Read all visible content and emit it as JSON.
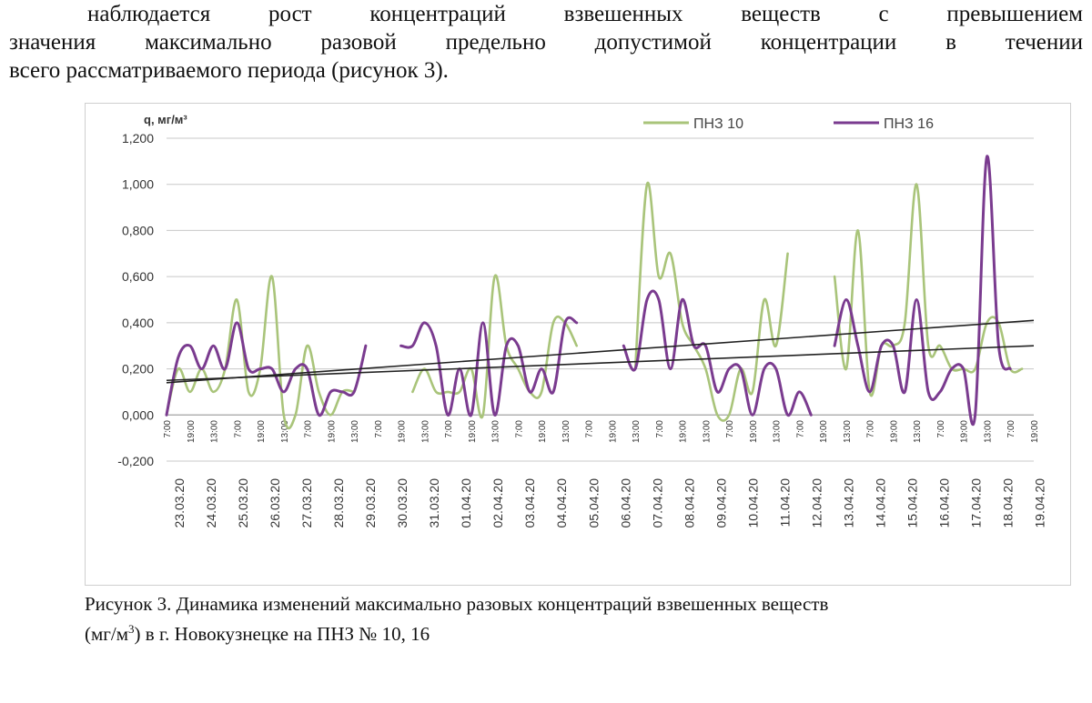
{
  "paragraph": {
    "line1": "наблюдается рост концентраций взвешенных веществ с превышением",
    "line2": "значения максимально разовой предельно допустимой концентрации в течении",
    "line3": "всего рассматриваемого периода (рисунок 3)."
  },
  "caption": {
    "line1": "Рисунок 3. Динамика изменений максимально разовых концентраций взвешенных веществ",
    "line2_pre": "(мг/м",
    "line2_sup": "3",
    "line2_post": ") в г. Новокузнецке на ПНЗ № 10, 16"
  },
  "chart_data": {
    "type": "line",
    "title": "",
    "ylabel": "q, мг/м³",
    "xlabel": "",
    "ylim": [
      -0.2,
      1.2
    ],
    "yticks": [
      "1,200",
      "1,000",
      "0,800",
      "0,600",
      "0,400",
      "0,200",
      "0,000",
      "-0,200"
    ],
    "ytick_values": [
      1.2,
      1.0,
      0.8,
      0.6,
      0.4,
      0.2,
      0.0,
      -0.2
    ],
    "grid": true,
    "legend_position": "top-right",
    "colors": {
      "pnz10": "#a9c47a",
      "pnz16": "#7a3b8f",
      "trend": "#222222",
      "grid": "#c8c8c8"
    },
    "dates": [
      "23.03.20",
      "24.03.20",
      "25.03.20",
      "26.03.20",
      "27.03.20",
      "28.03.20",
      "29.03.20",
      "30.03.20",
      "31.03.20",
      "01.04.20",
      "02.04.20",
      "03.04.20",
      "04.04.20",
      "05.04.20",
      "06.04.20",
      "07.04.20",
      "08.04.20",
      "09.04.20",
      "10.04.20",
      "11.04.20",
      "12.04.20",
      "13.04.20",
      "14.04.20",
      "15.04.20",
      "16.04.20",
      "17.04.20",
      "18.04.20",
      "19.04.20"
    ],
    "time_labels": [
      "7:00",
      "19:00",
      "13:00"
    ],
    "series": [
      {
        "name": "ПНЗ 10",
        "segments": [
          [
            [
              0,
              0.0
            ],
            [
              1,
              0.2
            ],
            [
              2,
              0.1
            ],
            [
              3,
              0.2
            ],
            [
              4,
              0.1
            ],
            [
              5,
              0.2
            ],
            [
              6,
              0.5
            ],
            [
              7,
              0.1
            ],
            [
              8,
              0.2
            ],
            [
              9,
              0.6
            ],
            [
              10,
              0.0
            ],
            [
              11,
              0.0
            ],
            [
              12,
              0.3
            ],
            [
              13,
              0.1
            ],
            [
              14,
              0.0
            ],
            [
              15,
              0.1
            ],
            [
              16,
              0.1
            ]
          ],
          [
            [
              21,
              0.1
            ],
            [
              22,
              0.2
            ],
            [
              23,
              0.1
            ],
            [
              24,
              0.1
            ],
            [
              25,
              0.1
            ],
            [
              26,
              0.2
            ],
            [
              27,
              0.0
            ],
            [
              28,
              0.6
            ],
            [
              29,
              0.3
            ],
            [
              30,
              0.2
            ],
            [
              31,
              0.1
            ],
            [
              32,
              0.1
            ],
            [
              33,
              0.4
            ],
            [
              34,
              0.4
            ],
            [
              35,
              0.3
            ]
          ],
          [
            [
              40,
              0.2
            ],
            [
              41,
              1.0
            ],
            [
              42,
              0.6
            ],
            [
              43,
              0.7
            ],
            [
              44,
              0.4
            ],
            [
              45,
              0.3
            ],
            [
              46,
              0.2
            ],
            [
              47,
              0.0
            ],
            [
              48,
              0.0
            ],
            [
              49,
              0.2
            ],
            [
              50,
              0.1
            ],
            [
              51,
              0.5
            ],
            [
              52,
              0.3
            ],
            [
              53,
              0.7
            ]
          ],
          [
            [
              57,
              0.6
            ],
            [
              58,
              0.2
            ],
            [
              59,
              0.8
            ],
            [
              60,
              0.1
            ],
            [
              61,
              0.3
            ],
            [
              62,
              0.3
            ],
            [
              63,
              0.4
            ],
            [
              64,
              1.0
            ],
            [
              65,
              0.3
            ],
            [
              66,
              0.3
            ],
            [
              67,
              0.2
            ],
            [
              68,
              0.2
            ],
            [
              69,
              0.2
            ],
            [
              70,
              0.4
            ],
            [
              71,
              0.4
            ],
            [
              72,
              0.2
            ],
            [
              73,
              0.2
            ]
          ]
        ]
      },
      {
        "name": "ПНЗ 16",
        "segments": [
          [
            [
              0,
              0.0
            ],
            [
              1,
              0.25
            ],
            [
              2,
              0.3
            ],
            [
              3,
              0.2
            ],
            [
              4,
              0.3
            ],
            [
              5,
              0.2
            ],
            [
              6,
              0.4
            ],
            [
              7,
              0.2
            ],
            [
              8,
              0.2
            ],
            [
              9,
              0.2
            ],
            [
              10,
              0.1
            ],
            [
              11,
              0.2
            ],
            [
              12,
              0.2
            ],
            [
              13,
              0.0
            ],
            [
              14,
              0.1
            ],
            [
              15,
              0.1
            ],
            [
              16,
              0.1
            ],
            [
              17,
              0.3
            ]
          ],
          [
            [
              20,
              0.3
            ],
            [
              21,
              0.3
            ],
            [
              22,
              0.4
            ],
            [
              23,
              0.3
            ],
            [
              24,
              0.0
            ],
            [
              25,
              0.2
            ],
            [
              26,
              0.0
            ],
            [
              27,
              0.4
            ],
            [
              28,
              0.0
            ],
            [
              29,
              0.3
            ],
            [
              30,
              0.3
            ],
            [
              31,
              0.1
            ],
            [
              32,
              0.2
            ],
            [
              33,
              0.1
            ],
            [
              34,
              0.4
            ],
            [
              35,
              0.4
            ]
          ],
          [
            [
              39,
              0.3
            ],
            [
              40,
              0.2
            ],
            [
              41,
              0.5
            ],
            [
              42,
              0.5
            ],
            [
              43,
              0.2
            ],
            [
              44,
              0.5
            ],
            [
              45,
              0.3
            ],
            [
              46,
              0.3
            ],
            [
              47,
              0.1
            ],
            [
              48,
              0.2
            ],
            [
              49,
              0.2
            ],
            [
              50,
              0.0
            ],
            [
              51,
              0.2
            ],
            [
              52,
              0.2
            ],
            [
              53,
              0.0
            ],
            [
              54,
              0.1
            ],
            [
              55,
              0.0
            ]
          ],
          [
            [
              57,
              0.3
            ],
            [
              58,
              0.5
            ],
            [
              59,
              0.3
            ],
            [
              60,
              0.1
            ],
            [
              61,
              0.3
            ],
            [
              62,
              0.3
            ],
            [
              63,
              0.1
            ],
            [
              64,
              0.5
            ],
            [
              65,
              0.1
            ],
            [
              66,
              0.1
            ],
            [
              67,
              0.2
            ],
            [
              68,
              0.2
            ],
            [
              69,
              0.0
            ],
            [
              70,
              1.12
            ],
            [
              71,
              0.3
            ],
            [
              72,
              0.2
            ]
          ]
        ]
      }
    ],
    "trendlines": [
      {
        "from": [
          0,
          0.14
        ],
        "to": [
          74,
          0.41
        ]
      },
      {
        "from": [
          0,
          0.15
        ],
        "to": [
          74,
          0.3
        ]
      }
    ],
    "n_points": 75
  }
}
